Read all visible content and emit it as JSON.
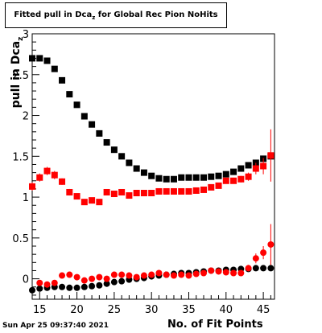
{
  "title_main": "Fitted pull in Dca",
  "title_sub": "z",
  "title_tail": " for Global Rec Pion NoHits",
  "ylabel_main": "pull in Dca",
  "ylabel_sub": "z",
  "xlabel": "No. of Fit Points",
  "timestamp": "Sun Apr 25 09:37:40 2021",
  "colors": {
    "series_black": "#000000",
    "series_red": "#ff0000",
    "axis": "#000000"
  },
  "chart_data": {
    "type": "scatter",
    "xlim": [
      14,
      46.5
    ],
    "ylim": [
      -0.25,
      3.0
    ],
    "x_ticks": [
      15,
      20,
      25,
      30,
      35,
      40,
      45
    ],
    "x_tick_labels": [
      "15",
      "20",
      "25",
      "30",
      "35",
      "40",
      "45"
    ],
    "y_ticks": [
      0,
      0.5,
      1,
      1.5,
      2,
      2.5,
      3
    ],
    "y_tick_labels": [
      "0",
      "0.5",
      "1",
      "1.5",
      "2",
      "2.5",
      "3"
    ],
    "legend": "none",
    "grid": false,
    "series": [
      {
        "color": "#000000",
        "marker": "square",
        "points": [
          {
            "x": 14,
            "y": 2.7
          },
          {
            "x": 15,
            "y": 2.7
          },
          {
            "x": 16,
            "y": 2.67
          },
          {
            "x": 17,
            "y": 2.57
          },
          {
            "x": 18,
            "y": 2.43
          },
          {
            "x": 19,
            "y": 2.26
          },
          {
            "x": 20,
            "y": 2.13
          },
          {
            "x": 21,
            "y": 1.99
          },
          {
            "x": 22,
            "y": 1.89
          },
          {
            "x": 23,
            "y": 1.78
          },
          {
            "x": 24,
            "y": 1.67
          },
          {
            "x": 25,
            "y": 1.58
          },
          {
            "x": 26,
            "y": 1.5
          },
          {
            "x": 27,
            "y": 1.42
          },
          {
            "x": 28,
            "y": 1.35
          },
          {
            "x": 29,
            "y": 1.3
          },
          {
            "x": 30,
            "y": 1.26
          },
          {
            "x": 31,
            "y": 1.23
          },
          {
            "x": 32,
            "y": 1.22
          },
          {
            "x": 33,
            "y": 1.22
          },
          {
            "x": 34,
            "y": 1.24
          },
          {
            "x": 35,
            "y": 1.24
          },
          {
            "x": 36,
            "y": 1.24
          },
          {
            "x": 37,
            "y": 1.24
          },
          {
            "x": 38,
            "y": 1.25
          },
          {
            "x": 39,
            "y": 1.26
          },
          {
            "x": 40,
            "y": 1.28
          },
          {
            "x": 41,
            "y": 1.31
          },
          {
            "x": 42,
            "y": 1.35
          },
          {
            "x": 43,
            "y": 1.39
          },
          {
            "x": 44,
            "y": 1.42
          },
          {
            "x": 45,
            "y": 1.47
          },
          {
            "x": 46,
            "y": 1.5
          }
        ]
      },
      {
        "color": "#ff0000",
        "marker": "square",
        "points": [
          {
            "x": 14,
            "y": 1.13,
            "err": 0.05
          },
          {
            "x": 15,
            "y": 1.24,
            "err": 0.05
          },
          {
            "x": 16,
            "y": 1.32,
            "err": 0.05
          },
          {
            "x": 17,
            "y": 1.27,
            "err": 0.05
          },
          {
            "x": 18,
            "y": 1.19,
            "err": 0.04
          },
          {
            "x": 19,
            "y": 1.06,
            "err": 0.04
          },
          {
            "x": 20,
            "y": 1.01,
            "err": 0.03
          },
          {
            "x": 21,
            "y": 0.94,
            "err": 0.03
          },
          {
            "x": 22,
            "y": 0.96,
            "err": 0.03
          },
          {
            "x": 23,
            "y": 0.94,
            "err": 0.03
          },
          {
            "x": 24,
            "y": 1.06,
            "err": 0.03
          },
          {
            "x": 25,
            "y": 1.04,
            "err": 0.03
          },
          {
            "x": 26,
            "y": 1.06,
            "err": 0.03
          },
          {
            "x": 27,
            "y": 1.02,
            "err": 0.02
          },
          {
            "x": 28,
            "y": 1.05,
            "err": 0.02
          },
          {
            "x": 29,
            "y": 1.05,
            "err": 0.02
          },
          {
            "x": 30,
            "y": 1.05,
            "err": 0.02
          },
          {
            "x": 31,
            "y": 1.07,
            "err": 0.02
          },
          {
            "x": 32,
            "y": 1.07,
            "err": 0.02
          },
          {
            "x": 33,
            "y": 1.07,
            "err": 0.02
          },
          {
            "x": 34,
            "y": 1.07,
            "err": 0.02
          },
          {
            "x": 35,
            "y": 1.07,
            "err": 0.02
          },
          {
            "x": 36,
            "y": 1.08,
            "err": 0.02
          },
          {
            "x": 37,
            "y": 1.09,
            "err": 0.02
          },
          {
            "x": 38,
            "y": 1.12,
            "err": 0.02
          },
          {
            "x": 39,
            "y": 1.14,
            "err": 0.02
          },
          {
            "x": 40,
            "y": 1.2,
            "err": 0.03
          },
          {
            "x": 41,
            "y": 1.2,
            "err": 0.03
          },
          {
            "x": 42,
            "y": 1.22,
            "err": 0.04
          },
          {
            "x": 43,
            "y": 1.25,
            "err": 0.05
          },
          {
            "x": 44,
            "y": 1.35,
            "err": 0.07
          },
          {
            "x": 45,
            "y": 1.38,
            "err": 0.1
          },
          {
            "x": 46,
            "y": 1.51,
            "err": 0.32
          }
        ]
      },
      {
        "color": "#000000",
        "marker": "circle",
        "points": [
          {
            "x": 14,
            "y": -0.14
          },
          {
            "x": 15,
            "y": -0.12
          },
          {
            "x": 16,
            "y": -0.11
          },
          {
            "x": 17,
            "y": -0.1
          },
          {
            "x": 18,
            "y": -0.1
          },
          {
            "x": 19,
            "y": -0.11
          },
          {
            "x": 20,
            "y": -0.11
          },
          {
            "x": 21,
            "y": -0.1
          },
          {
            "x": 22,
            "y": -0.09
          },
          {
            "x": 23,
            "y": -0.08
          },
          {
            "x": 24,
            "y": -0.06
          },
          {
            "x": 25,
            "y": -0.04
          },
          {
            "x": 26,
            "y": -0.03
          },
          {
            "x": 27,
            "y": -0.01
          },
          {
            "x": 28,
            "y": 0.0
          },
          {
            "x": 29,
            "y": 0.01
          },
          {
            "x": 30,
            "y": 0.03
          },
          {
            "x": 31,
            "y": 0.04
          },
          {
            "x": 32,
            "y": 0.05
          },
          {
            "x": 33,
            "y": 0.06
          },
          {
            "x": 34,
            "y": 0.07
          },
          {
            "x": 35,
            "y": 0.07
          },
          {
            "x": 36,
            "y": 0.08
          },
          {
            "x": 37,
            "y": 0.09
          },
          {
            "x": 38,
            "y": 0.1
          },
          {
            "x": 39,
            "y": 0.1
          },
          {
            "x": 40,
            "y": 0.11
          },
          {
            "x": 41,
            "y": 0.11
          },
          {
            "x": 42,
            "y": 0.12
          },
          {
            "x": 43,
            "y": 0.12
          },
          {
            "x": 44,
            "y": 0.13
          },
          {
            "x": 45,
            "y": 0.13
          },
          {
            "x": 46,
            "y": 0.13
          }
        ]
      },
      {
        "color": "#ff0000",
        "marker": "circle",
        "points": [
          {
            "x": 15,
            "y": -0.05,
            "err": 0.03
          },
          {
            "x": 16,
            "y": -0.07,
            "err": 0.03
          },
          {
            "x": 17,
            "y": -0.05,
            "err": 0.03
          },
          {
            "x": 18,
            "y": 0.04,
            "err": 0.03
          },
          {
            "x": 19,
            "y": 0.05,
            "err": 0.03
          },
          {
            "x": 20,
            "y": 0.02,
            "err": 0.02
          },
          {
            "x": 21,
            "y": -0.02,
            "err": 0.02
          },
          {
            "x": 22,
            "y": 0.0,
            "err": 0.02
          },
          {
            "x": 23,
            "y": 0.02,
            "err": 0.02
          },
          {
            "x": 24,
            "y": 0.0,
            "err": 0.02
          },
          {
            "x": 25,
            "y": 0.05,
            "err": 0.02
          },
          {
            "x": 26,
            "y": 0.05,
            "err": 0.02
          },
          {
            "x": 27,
            "y": 0.04,
            "err": 0.02
          },
          {
            "x": 28,
            "y": 0.02,
            "err": 0.02
          },
          {
            "x": 29,
            "y": 0.04,
            "err": 0.02
          },
          {
            "x": 30,
            "y": 0.05,
            "err": 0.02
          },
          {
            "x": 31,
            "y": 0.07,
            "err": 0.02
          },
          {
            "x": 32,
            "y": 0.05,
            "err": 0.02
          },
          {
            "x": 33,
            "y": 0.04,
            "err": 0.02
          },
          {
            "x": 34,
            "y": 0.05,
            "err": 0.02
          },
          {
            "x": 35,
            "y": 0.04,
            "err": 0.02
          },
          {
            "x": 36,
            "y": 0.06,
            "err": 0.02
          },
          {
            "x": 37,
            "y": 0.07,
            "err": 0.02
          },
          {
            "x": 38,
            "y": 0.1,
            "err": 0.02
          },
          {
            "x": 39,
            "y": 0.09,
            "err": 0.02
          },
          {
            "x": 40,
            "y": 0.08,
            "err": 0.02
          },
          {
            "x": 41,
            "y": 0.07,
            "err": 0.03
          },
          {
            "x": 42,
            "y": 0.07,
            "err": 0.03
          },
          {
            "x": 43,
            "y": 0.13,
            "err": 0.04
          },
          {
            "x": 44,
            "y": 0.25,
            "err": 0.06
          },
          {
            "x": 45,
            "y": 0.32,
            "err": 0.08
          },
          {
            "x": 46,
            "y": 0.42,
            "err": 0.25
          }
        ]
      }
    ]
  }
}
